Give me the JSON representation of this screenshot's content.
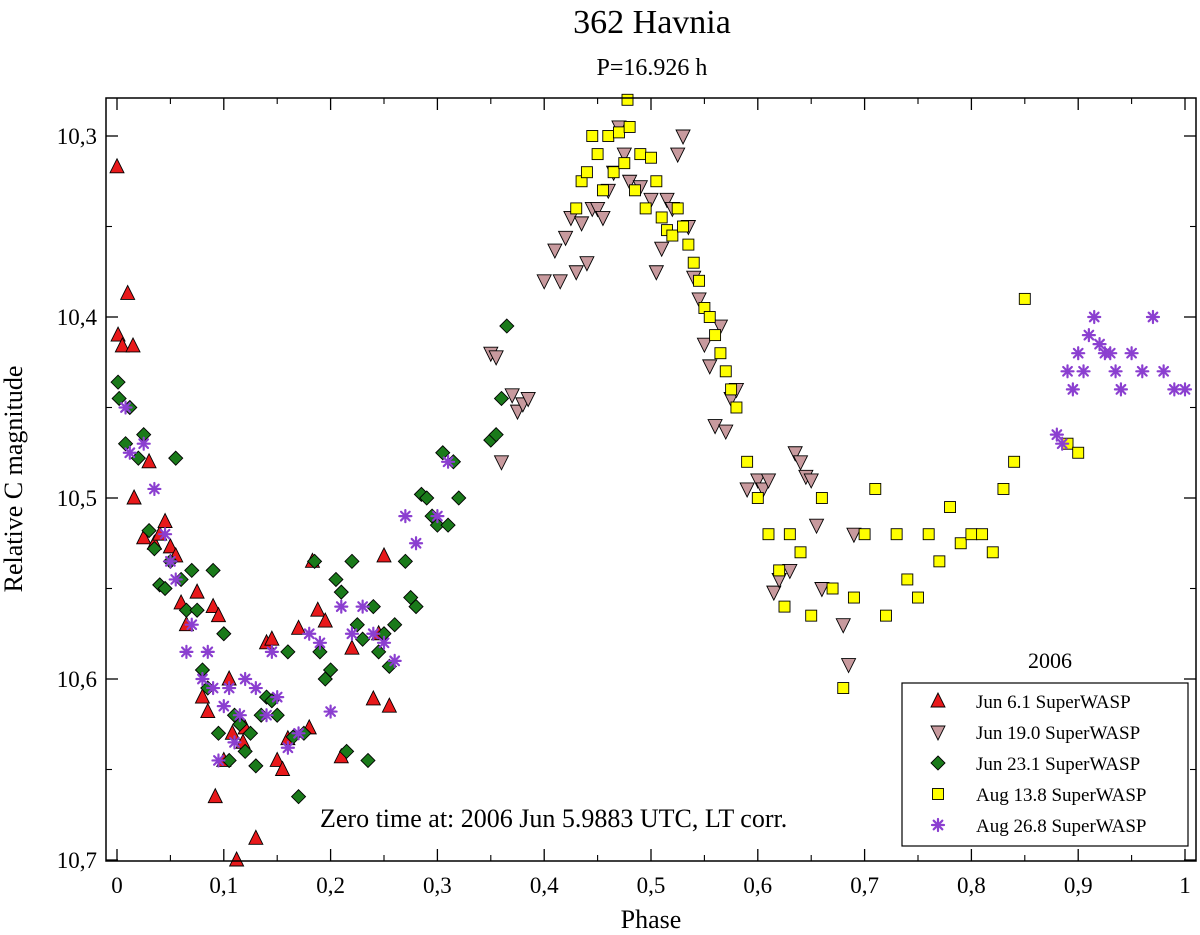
{
  "chart_data": {
    "type": "scatter",
    "title": "362 Havnia",
    "subtitle": "P=16.926 h",
    "xlabel": "Phase",
    "ylabel": "Relative C magnitude",
    "xlim": [
      -0.01,
      1.01
    ],
    "ylim": [
      10.68,
      10.28
    ],
    "y_inverted": true,
    "grid": false,
    "x_ticks": [
      {
        "value": 0,
        "label": "0"
      },
      {
        "value": 0.1,
        "label": "0,1"
      },
      {
        "value": 0.2,
        "label": "0,2"
      },
      {
        "value": 0.3,
        "label": "0,3"
      },
      {
        "value": 0.4,
        "label": "0,4"
      },
      {
        "value": 0.5,
        "label": "0,5"
      },
      {
        "value": 0.6,
        "label": "0,6"
      },
      {
        "value": 0.7,
        "label": "0,7"
      },
      {
        "value": 0.8,
        "label": "0,8"
      },
      {
        "value": 0.9,
        "label": "0,9"
      },
      {
        "value": 1,
        "label": "1"
      }
    ],
    "y_ticks": [
      {
        "value": 10.3,
        "label": "10,3"
      },
      {
        "value": 10.4,
        "label": "10,4"
      },
      {
        "value": 10.5,
        "label": "10,5"
      },
      {
        "value": 10.6,
        "label": "10,6"
      },
      {
        "value": 10.7,
        "label": "10,7"
      }
    ],
    "annotation": "Zero time at: 2006 Jun 5.9883 UTC, LT corr.",
    "legend_title": "2006",
    "legend_position": "bottom-right",
    "series": [
      {
        "name": "Jun 6.1 SuperWASP",
        "marker": "triangle-up",
        "color": "#e8191b",
        "points": [
          [
            0,
            10.317
          ],
          [
            0.001,
            10.41
          ],
          [
            0.005,
            10.416
          ],
          [
            0.01,
            10.387
          ],
          [
            0.015,
            10.416
          ],
          [
            0.016,
            10.5
          ],
          [
            0.025,
            10.522
          ],
          [
            0.03,
            10.48
          ],
          [
            0.035,
            10.525
          ],
          [
            0.04,
            10.52
          ],
          [
            0.045,
            10.513
          ],
          [
            0.05,
            10.527
          ],
          [
            0.055,
            10.532
          ],
          [
            0.06,
            10.558
          ],
          [
            0.065,
            10.57
          ],
          [
            0.075,
            10.552
          ],
          [
            0.08,
            10.61
          ],
          [
            0.085,
            10.618
          ],
          [
            0.09,
            10.56
          ],
          [
            0.092,
            10.665
          ],
          [
            0.095,
            10.565
          ],
          [
            0.1,
            10.645
          ],
          [
            0.105,
            10.6
          ],
          [
            0.108,
            10.63
          ],
          [
            0.112,
            10.7
          ],
          [
            0.118,
            10.635
          ],
          [
            0.12,
            10.627
          ],
          [
            0.13,
            10.688
          ],
          [
            0.14,
            10.58
          ],
          [
            0.145,
            10.578
          ],
          [
            0.15,
            10.645
          ],
          [
            0.155,
            10.65
          ],
          [
            0.16,
            10.633
          ],
          [
            0.17,
            10.572
          ],
          [
            0.18,
            10.627
          ],
          [
            0.183,
            10.535
          ],
          [
            0.188,
            10.562
          ],
          [
            0.195,
            10.568
          ],
          [
            0.21,
            10.643
          ],
          [
            0.22,
            10.583
          ],
          [
            0.24,
            10.611
          ],
          [
            0.245,
            10.575
          ],
          [
            0.25,
            10.532
          ],
          [
            0.255,
            10.615
          ]
        ]
      },
      {
        "name": "Jun 19.0 SuperWASP",
        "marker": "triangle-down",
        "color": "#c89a9e",
        "points": [
          [
            0.35,
            10.42
          ],
          [
            0.355,
            10.422
          ],
          [
            0.36,
            10.48
          ],
          [
            0.37,
            10.443
          ],
          [
            0.375,
            10.452
          ],
          [
            0.38,
            10.448
          ],
          [
            0.385,
            10.445
          ],
          [
            0.4,
            10.38
          ],
          [
            0.41,
            10.363
          ],
          [
            0.415,
            10.38
          ],
          [
            0.42,
            10.356
          ],
          [
            0.425,
            10.345
          ],
          [
            0.43,
            10.375
          ],
          [
            0.435,
            10.348
          ],
          [
            0.44,
            10.37
          ],
          [
            0.445,
            10.34
          ],
          [
            0.45,
            10.34
          ],
          [
            0.455,
            10.345
          ],
          [
            0.46,
            10.33
          ],
          [
            0.465,
            10.32
          ],
          [
            0.47,
            10.295
          ],
          [
            0.475,
            10.31
          ],
          [
            0.48,
            10.325
          ],
          [
            0.49,
            10.328
          ],
          [
            0.5,
            10.335
          ],
          [
            0.505,
            10.375
          ],
          [
            0.51,
            10.362
          ],
          [
            0.515,
            10.335
          ],
          [
            0.52,
            10.34
          ],
          [
            0.525,
            10.31
          ],
          [
            0.53,
            10.3
          ],
          [
            0.535,
            10.35
          ],
          [
            0.54,
            10.378
          ],
          [
            0.545,
            10.39
          ],
          [
            0.55,
            10.415
          ],
          [
            0.555,
            10.427
          ],
          [
            0.56,
            10.46
          ],
          [
            0.565,
            10.405
          ],
          [
            0.57,
            10.463
          ],
          [
            0.575,
            10.445
          ],
          [
            0.58,
            10.44
          ],
          [
            0.59,
            10.495
          ],
          [
            0.6,
            10.49
          ],
          [
            0.605,
            10.495
          ],
          [
            0.61,
            10.49
          ],
          [
            0.615,
            10.552
          ],
          [
            0.62,
            10.545
          ],
          [
            0.63,
            10.54
          ],
          [
            0.635,
            10.475
          ],
          [
            0.64,
            10.48
          ],
          [
            0.645,
            10.488
          ],
          [
            0.65,
            10.49
          ],
          [
            0.655,
            10.515
          ],
          [
            0.66,
            10.55
          ],
          [
            0.68,
            10.57
          ],
          [
            0.685,
            10.592
          ],
          [
            0.69,
            10.52
          ]
        ]
      },
      {
        "name": "Jun 23.1 SuperWASP",
        "marker": "diamond",
        "color": "#1a7a1a",
        "points": [
          [
            0.001,
            10.436
          ],
          [
            0.002,
            10.445
          ],
          [
            0.008,
            10.47
          ],
          [
            0.012,
            10.45
          ],
          [
            0.02,
            10.478
          ],
          [
            0.025,
            10.465
          ],
          [
            0.03,
            10.518
          ],
          [
            0.035,
            10.528
          ],
          [
            0.04,
            10.548
          ],
          [
            0.045,
            10.55
          ],
          [
            0.05,
            10.535
          ],
          [
            0.055,
            10.478
          ],
          [
            0.06,
            10.545
          ],
          [
            0.065,
            10.562
          ],
          [
            0.07,
            10.54
          ],
          [
            0.075,
            10.562
          ],
          [
            0.08,
            10.595
          ],
          [
            0.085,
            10.605
          ],
          [
            0.09,
            10.54
          ],
          [
            0.095,
            10.63
          ],
          [
            0.1,
            10.575
          ],
          [
            0.105,
            10.645
          ],
          [
            0.11,
            10.62
          ],
          [
            0.115,
            10.625
          ],
          [
            0.12,
            10.64
          ],
          [
            0.125,
            10.63
          ],
          [
            0.13,
            10.648
          ],
          [
            0.135,
            10.62
          ],
          [
            0.14,
            10.61
          ],
          [
            0.145,
            10.612
          ],
          [
            0.15,
            10.62
          ],
          [
            0.16,
            10.585
          ],
          [
            0.165,
            10.632
          ],
          [
            0.17,
            10.665
          ],
          [
            0.175,
            10.63
          ],
          [
            0.185,
            10.535
          ],
          [
            0.19,
            10.585
          ],
          [
            0.195,
            10.6
          ],
          [
            0.2,
            10.595
          ],
          [
            0.205,
            10.545
          ],
          [
            0.21,
            10.552
          ],
          [
            0.215,
            10.64
          ],
          [
            0.22,
            10.535
          ],
          [
            0.225,
            10.57
          ],
          [
            0.23,
            10.578
          ],
          [
            0.235,
            10.645
          ],
          [
            0.24,
            10.56
          ],
          [
            0.245,
            10.585
          ],
          [
            0.25,
            10.575
          ],
          [
            0.255,
            10.593
          ],
          [
            0.26,
            10.57
          ],
          [
            0.27,
            10.535
          ],
          [
            0.275,
            10.555
          ],
          [
            0.28,
            10.56
          ],
          [
            0.285,
            10.498
          ],
          [
            0.29,
            10.5
          ],
          [
            0.295,
            10.51
          ],
          [
            0.3,
            10.515
          ],
          [
            0.305,
            10.475
          ],
          [
            0.31,
            10.515
          ],
          [
            0.315,
            10.48
          ],
          [
            0.32,
            10.5
          ],
          [
            0.35,
            10.468
          ],
          [
            0.355,
            10.465
          ],
          [
            0.36,
            10.445
          ],
          [
            0.365,
            10.405
          ]
        ]
      },
      {
        "name": "Aug 13.8 SuperWASP",
        "marker": "square",
        "color": "#ffff00",
        "points": [
          [
            0.43,
            10.34
          ],
          [
            0.435,
            10.325
          ],
          [
            0.44,
            10.32
          ],
          [
            0.445,
            10.3
          ],
          [
            0.45,
            10.31
          ],
          [
            0.455,
            10.33
          ],
          [
            0.46,
            10.3
          ],
          [
            0.465,
            10.32
          ],
          [
            0.47,
            10.298
          ],
          [
            0.475,
            10.315
          ],
          [
            0.478,
            10.28
          ],
          [
            0.48,
            10.295
          ],
          [
            0.485,
            10.33
          ],
          [
            0.49,
            10.31
          ],
          [
            0.495,
            10.34
          ],
          [
            0.5,
            10.312
          ],
          [
            0.505,
            10.325
          ],
          [
            0.51,
            10.345
          ],
          [
            0.515,
            10.352
          ],
          [
            0.52,
            10.355
          ],
          [
            0.525,
            10.34
          ],
          [
            0.53,
            10.35
          ],
          [
            0.535,
            10.36
          ],
          [
            0.54,
            10.37
          ],
          [
            0.545,
            10.38
          ],
          [
            0.55,
            10.395
          ],
          [
            0.555,
            10.4
          ],
          [
            0.56,
            10.41
          ],
          [
            0.565,
            10.42
          ],
          [
            0.57,
            10.43
          ],
          [
            0.575,
            10.44
          ],
          [
            0.58,
            10.45
          ],
          [
            0.59,
            10.48
          ],
          [
            0.6,
            10.5
          ],
          [
            0.61,
            10.52
          ],
          [
            0.62,
            10.54
          ],
          [
            0.625,
            10.56
          ],
          [
            0.63,
            10.52
          ],
          [
            0.64,
            10.53
          ],
          [
            0.65,
            10.565
          ],
          [
            0.66,
            10.5
          ],
          [
            0.67,
            10.55
          ],
          [
            0.68,
            10.605
          ],
          [
            0.69,
            10.555
          ],
          [
            0.7,
            10.52
          ],
          [
            0.71,
            10.495
          ],
          [
            0.72,
            10.565
          ],
          [
            0.73,
            10.52
          ],
          [
            0.74,
            10.545
          ],
          [
            0.75,
            10.555
          ],
          [
            0.76,
            10.52
          ],
          [
            0.77,
            10.535
          ],
          [
            0.78,
            10.505
          ],
          [
            0.79,
            10.525
          ],
          [
            0.8,
            10.52
          ],
          [
            0.81,
            10.52
          ],
          [
            0.82,
            10.53
          ],
          [
            0.83,
            10.495
          ],
          [
            0.84,
            10.48
          ],
          [
            0.85,
            10.39
          ],
          [
            0.89,
            10.47
          ],
          [
            0.9,
            10.475
          ]
        ]
      },
      {
        "name": "Aug 26.8 SuperWASP",
        "marker": "asterisk",
        "color": "#8b3fd0",
        "points": [
          [
            0.008,
            10.45
          ],
          [
            0.012,
            10.475
          ],
          [
            0.025,
            10.47
          ],
          [
            0.035,
            10.495
          ],
          [
            0.045,
            10.52
          ],
          [
            0.05,
            10.535
          ],
          [
            0.055,
            10.545
          ],
          [
            0.065,
            10.585
          ],
          [
            0.07,
            10.57
          ],
          [
            0.08,
            10.6
          ],
          [
            0.085,
            10.585
          ],
          [
            0.09,
            10.605
          ],
          [
            0.095,
            10.645
          ],
          [
            0.1,
            10.615
          ],
          [
            0.105,
            10.605
          ],
          [
            0.11,
            10.635
          ],
          [
            0.115,
            10.62
          ],
          [
            0.12,
            10.6
          ],
          [
            0.13,
            10.605
          ],
          [
            0.14,
            10.62
          ],
          [
            0.145,
            10.585
          ],
          [
            0.15,
            10.61
          ],
          [
            0.16,
            10.638
          ],
          [
            0.17,
            10.63
          ],
          [
            0.18,
            10.575
          ],
          [
            0.19,
            10.58
          ],
          [
            0.2,
            10.618
          ],
          [
            0.21,
            10.56
          ],
          [
            0.22,
            10.575
          ],
          [
            0.23,
            10.56
          ],
          [
            0.24,
            10.575
          ],
          [
            0.25,
            10.58
          ],
          [
            0.26,
            10.59
          ],
          [
            0.27,
            10.51
          ],
          [
            0.28,
            10.525
          ],
          [
            0.3,
            10.51
          ],
          [
            0.31,
            10.48
          ],
          [
            0.88,
            10.465
          ],
          [
            0.885,
            10.47
          ],
          [
            0.89,
            10.43
          ],
          [
            0.895,
            10.44
          ],
          [
            0.9,
            10.42
          ],
          [
            0.905,
            10.43
          ],
          [
            0.91,
            10.41
          ],
          [
            0.915,
            10.4
          ],
          [
            0.92,
            10.415
          ],
          [
            0.925,
            10.42
          ],
          [
            0.93,
            10.42
          ],
          [
            0.935,
            10.43
          ],
          [
            0.94,
            10.44
          ],
          [
            0.95,
            10.42
          ],
          [
            0.96,
            10.43
          ],
          [
            0.97,
            10.4
          ],
          [
            0.98,
            10.43
          ],
          [
            0.99,
            10.44
          ],
          [
            1.0,
            10.44
          ]
        ]
      }
    ]
  }
}
